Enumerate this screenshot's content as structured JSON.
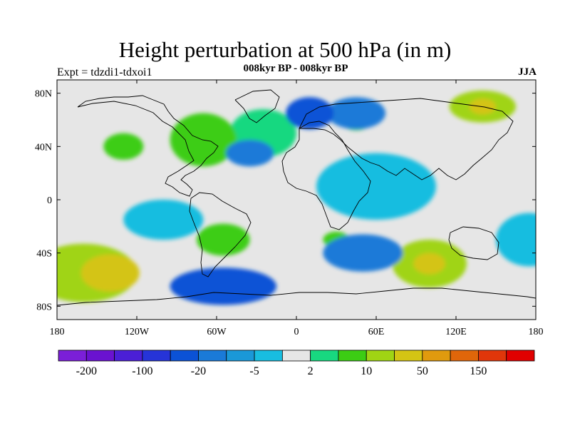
{
  "title": "Height perturbation at 500 hPa (in m)",
  "left_label": "Expt = tdzdi1-tdxoi1",
  "center_label": "008kyr BP - 008kyr BP",
  "right_label": "JJA",
  "colors": {
    "background_field": "#e6e6e6",
    "coastline": "#000000"
  },
  "map": {
    "lon_range": [
      -180,
      180
    ],
    "lat_range": [
      -90,
      90
    ],
    "lon_ticks": [
      {
        "value": -180,
        "label": "180"
      },
      {
        "value": -120,
        "label": "120W"
      },
      {
        "value": -60,
        "label": "60W"
      },
      {
        "value": 0,
        "label": "0"
      },
      {
        "value": 60,
        "label": "60E"
      },
      {
        "value": 120,
        "label": "120E"
      },
      {
        "value": 180,
        "label": "180"
      }
    ],
    "lat_ticks": [
      {
        "value": 80,
        "label": "80N"
      },
      {
        "value": 40,
        "label": "40N"
      },
      {
        "value": 0,
        "label": "0"
      },
      {
        "value": -40,
        "label": "40S"
      },
      {
        "value": -80,
        "label": "80S"
      }
    ]
  },
  "colorbar": {
    "colors": [
      "#7b1fd8",
      "#6a12d0",
      "#4b1fd6",
      "#2634d8",
      "#0b52d6",
      "#1a7ad8",
      "#1a98d8",
      "#18bde0",
      "#e6e6e6",
      "#18d880",
      "#3ccd14",
      "#a0d414",
      "#d4c414",
      "#e09a0e",
      "#e0660a",
      "#e0360a",
      "#e00000"
    ],
    "labels": [
      {
        "after_box": 1,
        "text": "-200"
      },
      {
        "after_box": 3,
        "text": "-100"
      },
      {
        "after_box": 5,
        "text": "-20"
      },
      {
        "after_box": 7,
        "text": "-5"
      },
      {
        "after_box": 9,
        "text": "2"
      },
      {
        "after_box": 11,
        "text": "10"
      },
      {
        "after_box": 13,
        "text": "50"
      },
      {
        "after_box": 15,
        "text": "150"
      }
    ]
  },
  "field_anomalies": [
    {
      "lon": -160,
      "lat": -55,
      "rx": 40,
      "ry": 22,
      "level": "pos_strong"
    },
    {
      "lon": -140,
      "lat": -55,
      "rx": 22,
      "ry": 14,
      "level": "pos_peak"
    },
    {
      "lon": 100,
      "lat": -48,
      "rx": 28,
      "ry": 18,
      "level": "pos_strong"
    },
    {
      "lon": 100,
      "lat": -48,
      "rx": 12,
      "ry": 8,
      "level": "pos_peak"
    },
    {
      "lon": 140,
      "lat": 70,
      "rx": 25,
      "ry": 12,
      "level": "pos_strong"
    },
    {
      "lon": 140,
      "lat": 70,
      "rx": 10,
      "ry": 6,
      "level": "pos_peak"
    },
    {
      "lon": 45,
      "lat": 60,
      "rx": 12,
      "ry": 8,
      "level": "pos_mid"
    },
    {
      "lon": -25,
      "lat": 50,
      "rx": 25,
      "ry": 18,
      "level": "pos_weak"
    },
    {
      "lon": -70,
      "lat": 45,
      "rx": 25,
      "ry": 20,
      "level": "pos_mid"
    },
    {
      "lon": -130,
      "lat": 40,
      "rx": 15,
      "ry": 10,
      "level": "pos_mid"
    },
    {
      "lon": -55,
      "lat": -30,
      "rx": 20,
      "ry": 12,
      "level": "pos_mid"
    },
    {
      "lon": 30,
      "lat": -30,
      "rx": 10,
      "ry": 6,
      "level": "pos_mid"
    },
    {
      "lon": 45,
      "lat": 65,
      "rx": 22,
      "ry": 12,
      "level": "neg_mid"
    },
    {
      "lon": 10,
      "lat": 65,
      "rx": 18,
      "ry": 12,
      "level": "neg_strong"
    },
    {
      "lon": -35,
      "lat": 35,
      "rx": 18,
      "ry": 10,
      "level": "neg_mid"
    },
    {
      "lon": -55,
      "lat": -65,
      "rx": 40,
      "ry": 14,
      "level": "neg_strong"
    },
    {
      "lon": 50,
      "lat": -40,
      "rx": 30,
      "ry": 14,
      "level": "neg_mid"
    },
    {
      "lon": -100,
      "lat": -15,
      "rx": 30,
      "ry": 15,
      "level": "neg_weak"
    },
    {
      "lon": 60,
      "lat": 10,
      "rx": 45,
      "ry": 25,
      "level": "neg_weak"
    },
    {
      "lon": 175,
      "lat": -30,
      "rx": 25,
      "ry": 20,
      "level": "neg_weak"
    }
  ]
}
